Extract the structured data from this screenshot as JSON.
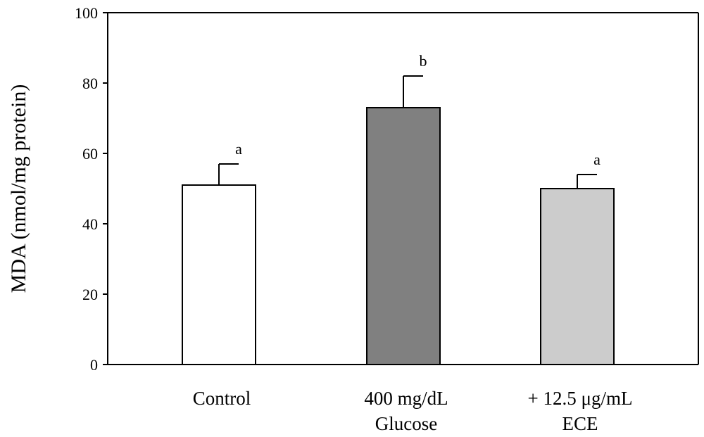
{
  "chart_data": {
    "type": "bar",
    "title": "",
    "xlabel": "",
    "ylabel": "MDA (nmol/mg protein)",
    "ylim": [
      0,
      100
    ],
    "yticks": [
      0,
      20,
      40,
      60,
      80,
      100
    ],
    "grid": false,
    "categories": [
      {
        "lines": [
          "Control"
        ]
      },
      {
        "lines": [
          "400 mg/dL",
          "Glucose"
        ]
      },
      {
        "lines": [
          "+ 12.5 μg/mL",
          "ECE"
        ]
      }
    ],
    "values": [
      51,
      73,
      50
    ],
    "errors": [
      6,
      9,
      4
    ],
    "significance_labels": [
      "a",
      "b",
      "a"
    ],
    "colors": [
      "#ffffff",
      "#808080",
      "#cccccc"
    ]
  }
}
